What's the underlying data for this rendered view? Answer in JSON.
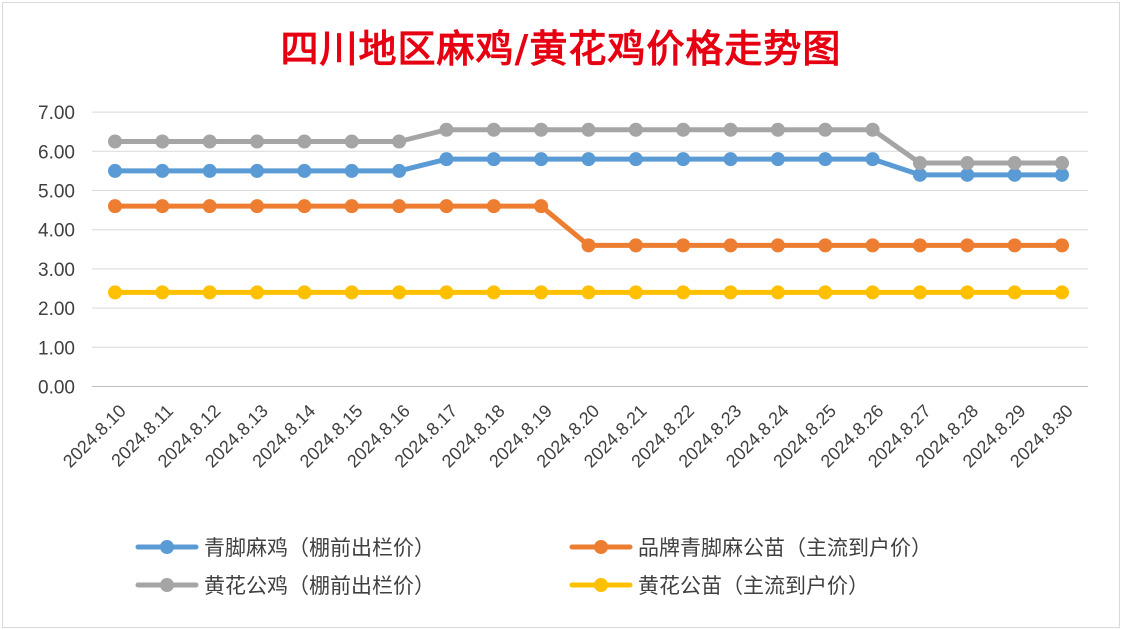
{
  "chart_data": {
    "type": "line",
    "title": "四川地区麻鸡/黄花鸡价格走势图",
    "xlabel": "",
    "ylabel": "",
    "ylim": [
      0,
      7
    ],
    "yticks": [
      "0.00",
      "1.00",
      "2.00",
      "3.00",
      "4.00",
      "5.00",
      "6.00",
      "7.00"
    ],
    "grid": true,
    "legend_position": "bottom",
    "categories": [
      "2024.8.10",
      "2024.8.11",
      "2024.8.12",
      "2024.8.13",
      "2024.8.14",
      "2024.8.15",
      "2024.8.16",
      "2024.8.17",
      "2024.8.18",
      "2024.8.19",
      "2024.8.20",
      "2024.8.21",
      "2024.8.22",
      "2024.8.23",
      "2024.8.24",
      "2024.8.25",
      "2024.8.26",
      "2024.8.27",
      "2024.8.28",
      "2024.8.29",
      "2024.8.30"
    ],
    "series": [
      {
        "name": "青脚麻鸡（棚前出栏价）",
        "color": "#5b9bd5",
        "values": [
          5.5,
          5.5,
          5.5,
          5.5,
          5.5,
          5.5,
          5.5,
          5.8,
          5.8,
          5.8,
          5.8,
          5.8,
          5.8,
          5.8,
          5.8,
          5.8,
          5.8,
          5.4,
          5.4,
          5.4,
          5.4
        ]
      },
      {
        "name": "品牌青脚麻公苗（主流到户价）",
        "color": "#ed7d31",
        "values": [
          4.6,
          4.6,
          4.6,
          4.6,
          4.6,
          4.6,
          4.6,
          4.6,
          4.6,
          4.6,
          3.6,
          3.6,
          3.6,
          3.6,
          3.6,
          3.6,
          3.6,
          3.6,
          3.6,
          3.6,
          3.6
        ]
      },
      {
        "name": "黄花公鸡（棚前出栏价）",
        "color": "#a5a5a5",
        "values": [
          6.25,
          6.25,
          6.25,
          6.25,
          6.25,
          6.25,
          6.25,
          6.55,
          6.55,
          6.55,
          6.55,
          6.55,
          6.55,
          6.55,
          6.55,
          6.55,
          6.55,
          5.7,
          5.7,
          5.7,
          5.7
        ]
      },
      {
        "name": "黄花公苗（主流到户价）",
        "color": "#ffc000",
        "values": [
          2.4,
          2.4,
          2.4,
          2.4,
          2.4,
          2.4,
          2.4,
          2.4,
          2.4,
          2.4,
          2.4,
          2.4,
          2.4,
          2.4,
          2.4,
          2.4,
          2.4,
          2.4,
          2.4,
          2.4,
          2.4
        ]
      }
    ]
  }
}
